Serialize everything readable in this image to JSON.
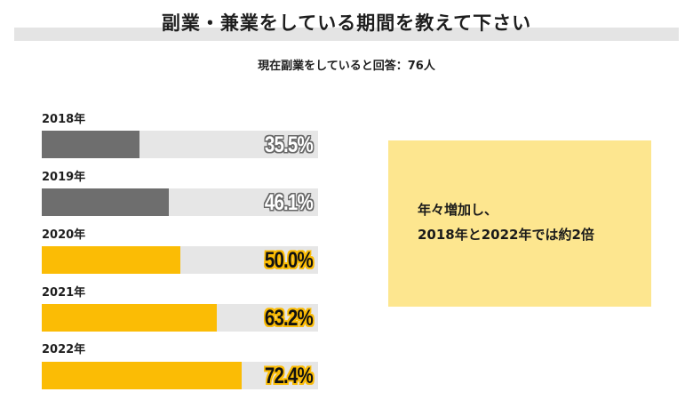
{
  "header": {
    "title": "副業・兼業をしている期間を教えて下さい",
    "subtitle": "現在副業をしていると回答：76人"
  },
  "colors": {
    "past_bar": "#6e6e6e",
    "recent_bar": "#fbbc05",
    "track": "#e6e6e6",
    "title_band": "#e4e4e4",
    "callout_bg": "#fde68f"
  },
  "rows": [
    {
      "label": "2018年",
      "value": 35.5,
      "display": "35.5%",
      "style": "gray"
    },
    {
      "label": "2019年",
      "value": 46.1,
      "display": "46.1%",
      "style": "gray"
    },
    {
      "label": "2020年",
      "value": 50.0,
      "display": "50.0%",
      "style": "yellow"
    },
    {
      "label": "2021年",
      "value": 63.2,
      "display": "63.2%",
      "style": "yellow"
    },
    {
      "label": "2022年",
      "value": 72.4,
      "display": "72.4%",
      "style": "yellow"
    }
  ],
  "callout": {
    "line1": "年々増加し、",
    "line2": "2018年と2022年では約2倍"
  },
  "chart_data": {
    "type": "bar",
    "orientation": "horizontal",
    "title": "副業・兼業をしている期間を教えて下さい",
    "subtitle": "現在副業をしていると回答：76人",
    "categories": [
      "2018年",
      "2019年",
      "2020年",
      "2021年",
      "2022年"
    ],
    "values": [
      35.5,
      46.1,
      50.0,
      63.2,
      72.4
    ],
    "value_labels": [
      "35.5%",
      "46.1%",
      "50.0%",
      "63.2%",
      "72.4%"
    ],
    "xlabel": "",
    "ylabel": "",
    "xlim": [
      0,
      100
    ],
    "grid": false,
    "legend": null,
    "annotations": [
      "年々増加し、",
      "2018年と2022年では約2倍"
    ]
  }
}
